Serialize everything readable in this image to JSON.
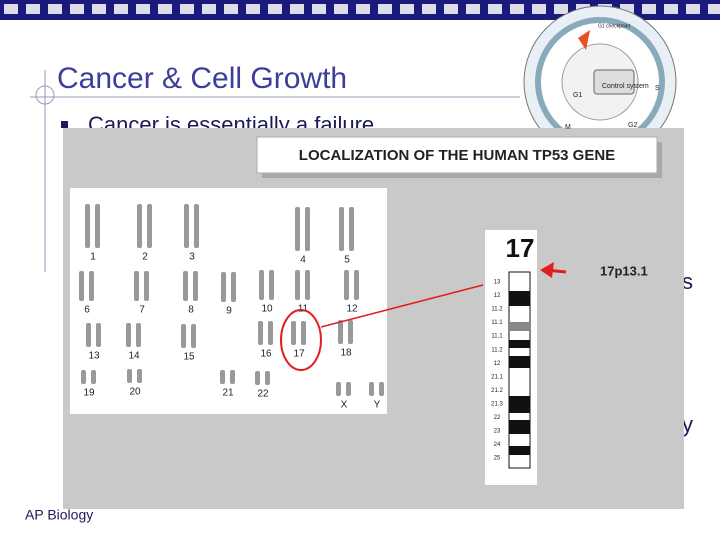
{
  "slide": {
    "title": "Cancer & Cell Growth",
    "bullets": [
      "Cancer is essentially a failure"
    ],
    "footer": "AP Biology",
    "fragments": [
      "s",
      "y"
    ]
  },
  "figure": {
    "banner": "LOCALIZATION OF THE HUMAN TP53 GENE",
    "karyotype_labels": [
      "1",
      "2",
      "3",
      "4",
      "5",
      "6",
      "7",
      "8",
      "9",
      "10",
      "11",
      "12",
      "13",
      "14",
      "15",
      "16",
      "17",
      "18",
      "19",
      "20",
      "21",
      "22",
      "X",
      "Y"
    ],
    "ideogram_label": "17",
    "band_labels": [
      "13",
      "12",
      "11.2",
      "11.1",
      "11.1",
      "11.2",
      "12",
      "21.1",
      "21.2",
      "21.3",
      "22",
      "23",
      "24",
      "25"
    ],
    "locus": "17p13.1"
  },
  "cell_cycle": {
    "labels": [
      "G1 checkpoint",
      "Control system",
      "G1",
      "S",
      "M",
      "G2"
    ]
  }
}
